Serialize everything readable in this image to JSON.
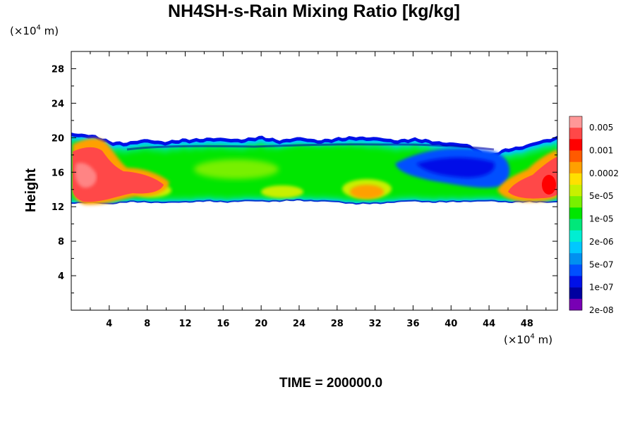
{
  "chart_data": {
    "type": "heatmap",
    "title": "NH4SH-s-Rain Mixing Ratio [kg/kg]",
    "ylabel": "Height",
    "x_unit": "(×10",
    "x_unit_exp": "4",
    "x_unit_tail": " m)",
    "y_unit": "(×10",
    "y_unit_exp": "4",
    "y_unit_tail": " m)",
    "xlim": [
      0,
      51.2
    ],
    "ylim": [
      0,
      30
    ],
    "x_ticks": [
      4,
      8,
      12,
      16,
      20,
      24,
      28,
      32,
      36,
      40,
      44,
      48
    ],
    "y_ticks": [
      4,
      8,
      12,
      16,
      20,
      24,
      28
    ],
    "x_tick_labels": [
      "4",
      "8",
      "12",
      "16",
      "20",
      "24",
      "28",
      "32",
      "36",
      "40",
      "44",
      "48"
    ],
    "y_tick_labels": [
      "4",
      "8",
      "12",
      "16",
      "20",
      "24",
      "28"
    ],
    "colorbar": {
      "labels": [
        "0.005",
        "0.001",
        "0.0002",
        "5e-05",
        "1e-05",
        "2e-06",
        "5e-07",
        "1e-07",
        "2e-08"
      ],
      "colors": [
        "#ff9898",
        "#ff4848",
        "#ff0000",
        "#ff5a00",
        "#ffa000",
        "#ffe000",
        "#c8f000",
        "#78f000",
        "#00e600",
        "#00e87a",
        "#00eed2",
        "#00c8ff",
        "#0090f0",
        "#0050ff",
        "#0010e8",
        "#0000a0",
        "#7800b4"
      ]
    },
    "cloud_band": {
      "x_samples": [
        0,
        2,
        4,
        6,
        8,
        10,
        12,
        14,
        16,
        18,
        20,
        22,
        24,
        26,
        28,
        30,
        32,
        34,
        36,
        38,
        40,
        42,
        44,
        46,
        48,
        50,
        51.2
      ],
      "top": [
        20.6,
        20.4,
        19.6,
        19.5,
        19.8,
        19.6,
        19.8,
        20.0,
        19.9,
        19.9,
        20.1,
        19.8,
        20.0,
        19.8,
        19.9,
        20.2,
        20.0,
        19.8,
        19.9,
        19.7,
        19.4,
        19.2,
        17.9,
        18.8,
        19.2,
        19.8,
        20.2
      ],
      "bottom": [
        12.4,
        12.4,
        12.3,
        12.5,
        12.5,
        12.4,
        12.5,
        12.6,
        12.5,
        12.6,
        12.6,
        12.6,
        12.7,
        12.6,
        12.5,
        12.3,
        12.3,
        12.5,
        12.6,
        12.5,
        12.5,
        12.6,
        12.6,
        12.5,
        12.5,
        12.5,
        12.5
      ]
    },
    "grid": false,
    "legend_position": "right"
  },
  "footer": {
    "time_label": "TIME = 200000.0"
  }
}
